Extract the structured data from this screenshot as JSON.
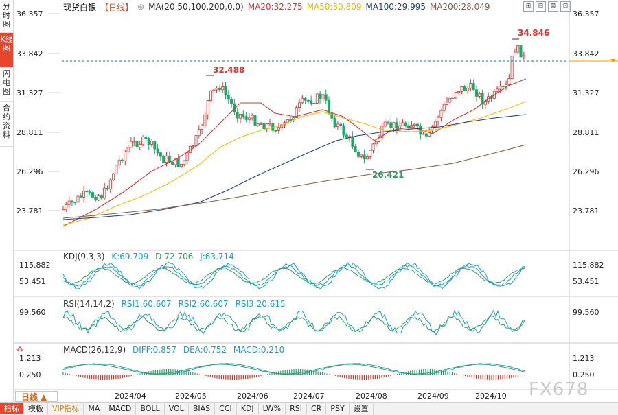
{
  "left_tabs": [
    {
      "label": "分时图",
      "active": false
    },
    {
      "label": "K线图",
      "active": true
    },
    {
      "label": "闪电图",
      "active": false
    },
    {
      "label": "合约资料",
      "active": false
    }
  ],
  "header": {
    "instrument": "现货白银",
    "period": "【日线】",
    "period_icon": "⊕",
    "ma_label": "MA(20,50,100,200,0,0)",
    "ma20": "MA20:32.275",
    "ma50": "MA50:30.809",
    "ma100": "MA100:29.995",
    "ma200": "MA200:28.049"
  },
  "window_icons": [
    "⊞",
    "⊟",
    "⊠",
    "⊡"
  ],
  "price_axis": {
    "labels": [
      "36.357",
      "33.842",
      "31.327",
      "28.811",
      "26.296",
      "23.781"
    ],
    "current": "33.842"
  },
  "annotations": {
    "high": "32.488",
    "high2": "34.846",
    "low": "26.421"
  },
  "kdj": {
    "label": "KDJ(9,3,3)",
    "k": "K:69.709",
    "d": "D:72.706",
    "j": "J:63.714",
    "axis": [
      "115.882",
      "53.451"
    ]
  },
  "rsi": {
    "label": "RSI(14,14,2)",
    "r1": "RSI1:60.607",
    "r2": "RSI2:60.607",
    "r3": "RSI3:20.615",
    "axis": [
      "99.560"
    ]
  },
  "macd": {
    "label": "MACD(26,12,9)",
    "diff": "DIFF:0.857",
    "dea": "DEA:0.752",
    "macd": "MACD:0.210",
    "axis": [
      "1.213",
      "0.250"
    ]
  },
  "dates": [
    "2024/04",
    "2024/05",
    "2024/06",
    "2024/07",
    "2024/08",
    "2024/09",
    "2024/10"
  ],
  "period_button": "日线 ▲",
  "bottom_tabs": [
    "指标",
    "模板",
    "VIP指标",
    "MA",
    "MACD",
    "BOLL",
    "VOL",
    "BIAS",
    "CCI",
    "KDJ",
    "LW%",
    "RSI",
    "CR",
    "PSY",
    "设置"
  ],
  "watermark": "FX678",
  "colors": {
    "up": "#e0312d",
    "down": "#1ea86b",
    "ma20": "#e0312d",
    "ma50": "#f0c000",
    "ma100": "#1a3f8a",
    "ma200": "#8b5a4a"
  }
}
